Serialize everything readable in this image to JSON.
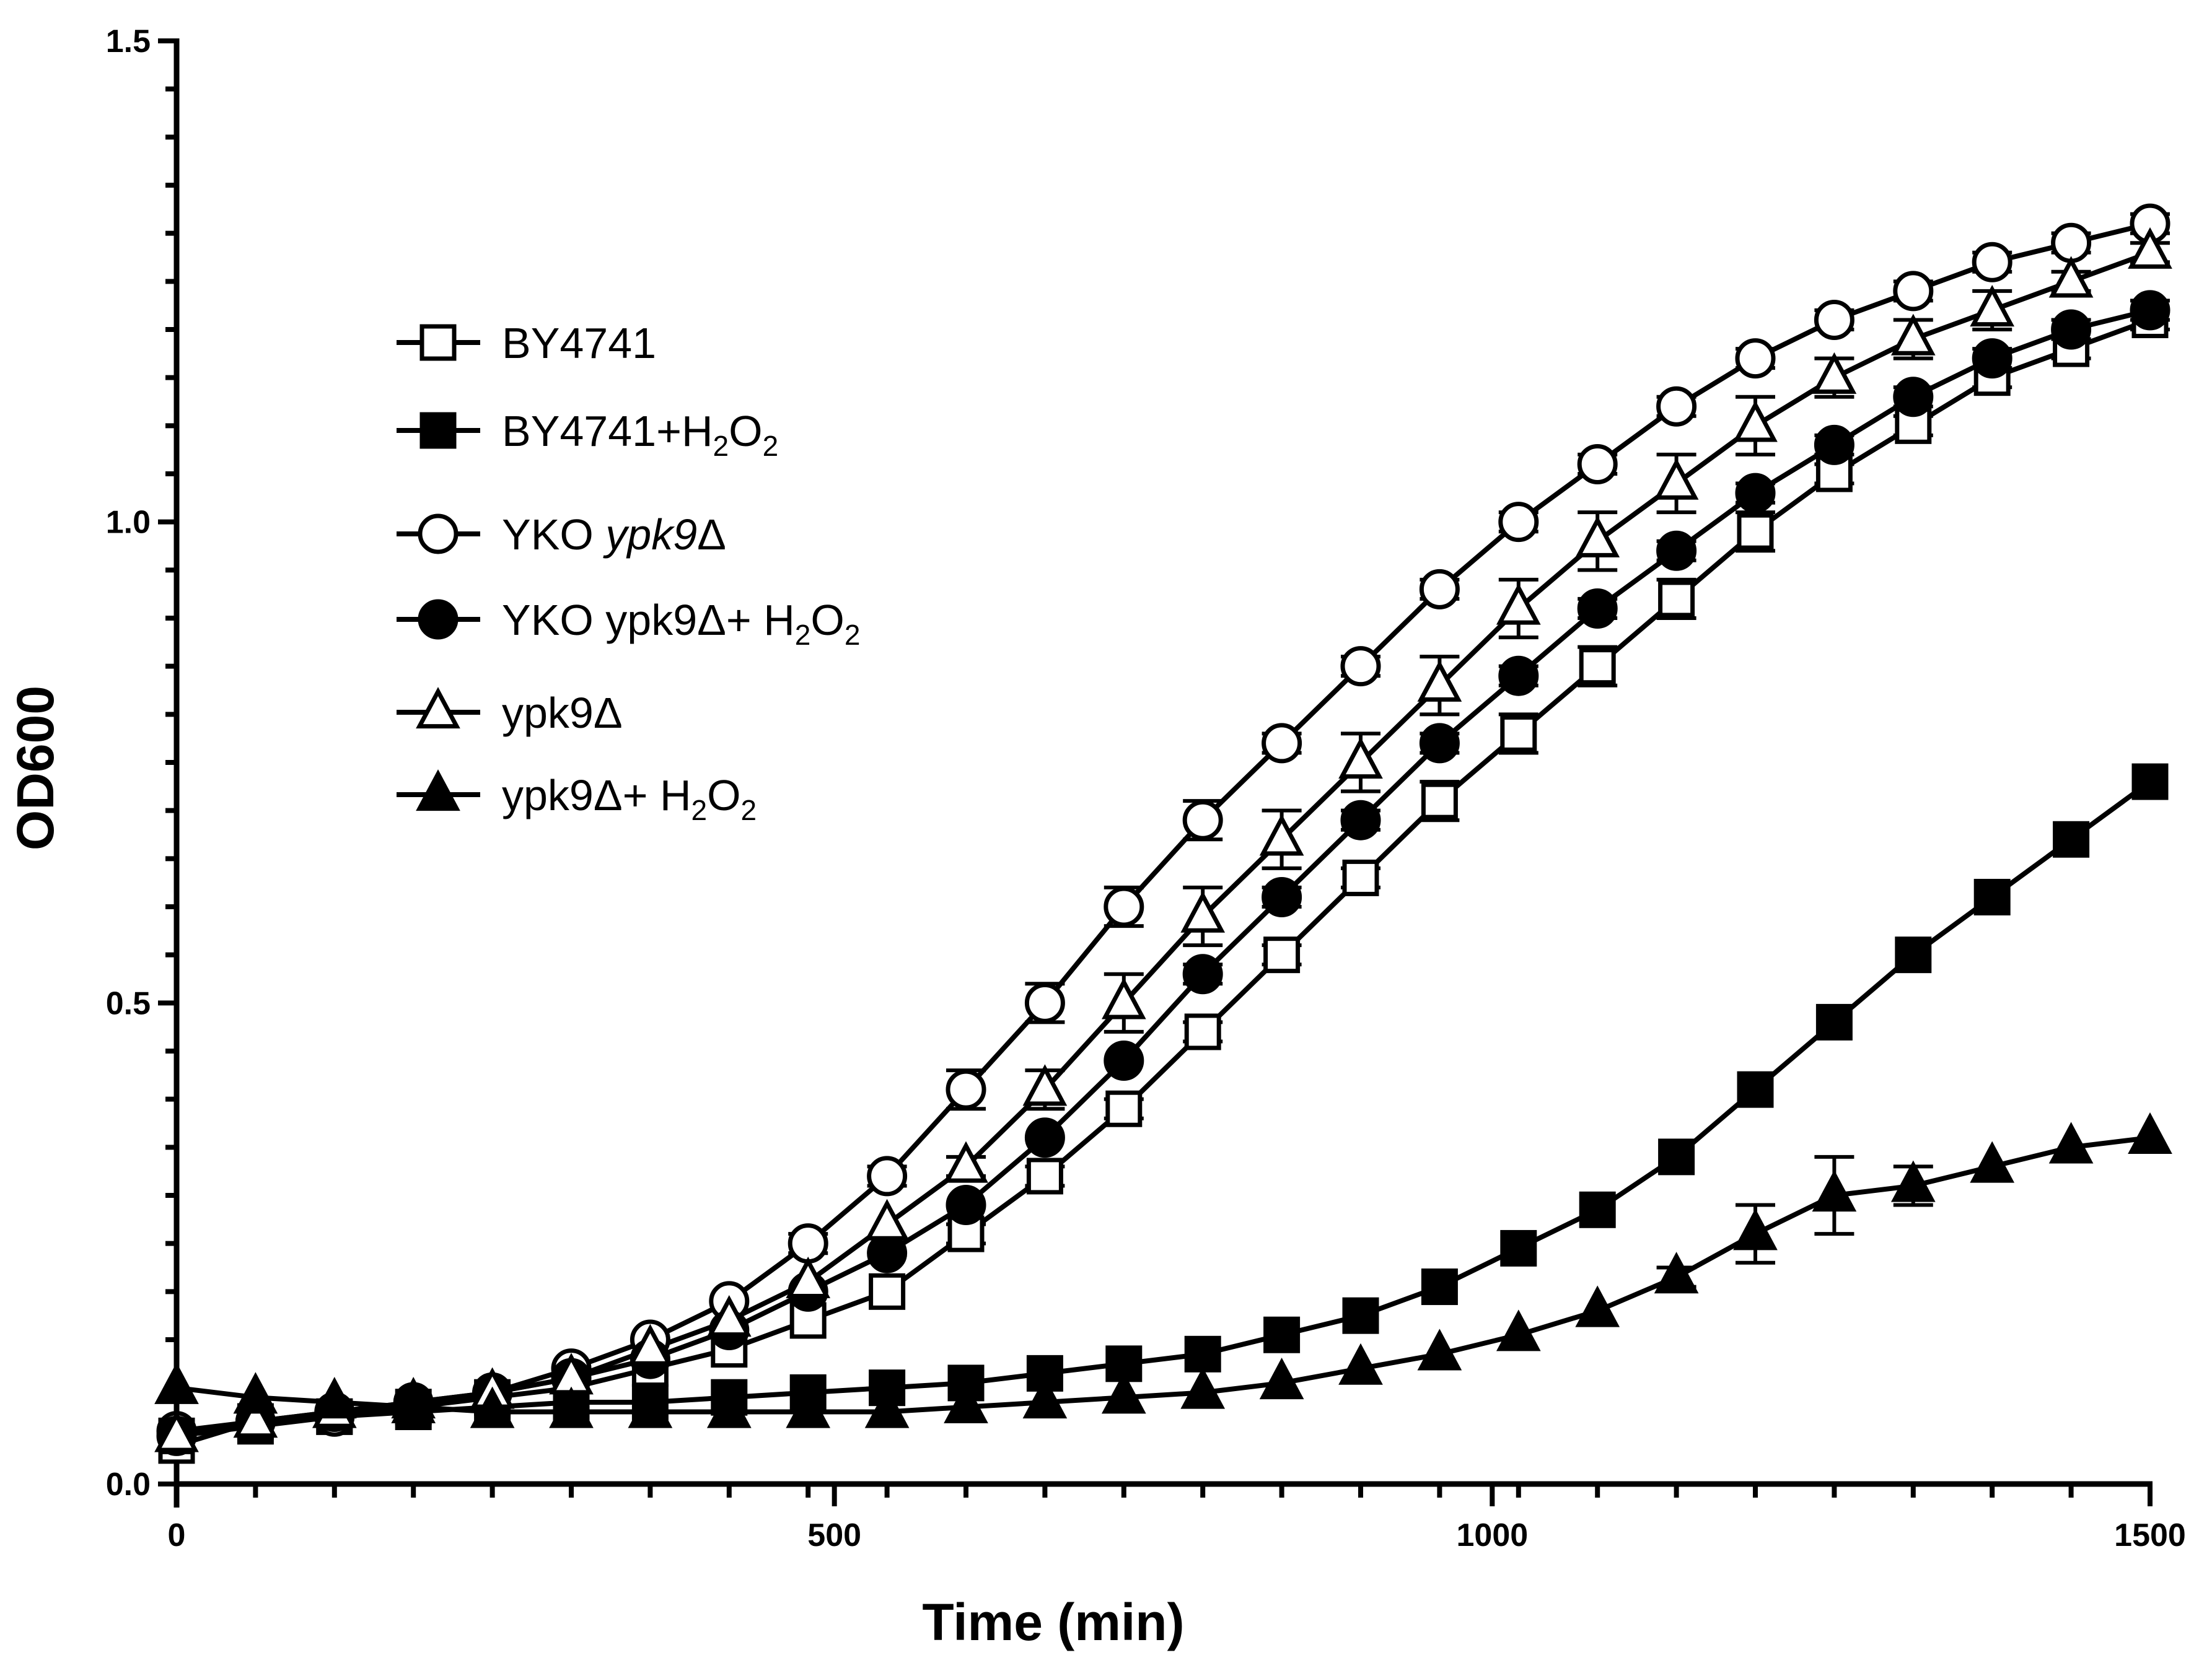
{
  "chart_data": {
    "type": "line",
    "title": "",
    "xlabel": "Time (min)",
    "ylabel": "OD600",
    "xlim": [
      0,
      1500
    ],
    "ylim": [
      0,
      1.5
    ],
    "x_ticks": [
      "0",
      "500",
      "1000",
      "1500"
    ],
    "y_ticks": [
      "0.0",
      "0.5",
      "1.0",
      "1.5"
    ],
    "x_tick_values": [
      0,
      500,
      1000,
      1500
    ],
    "y_tick_values": [
      0,
      0.5,
      1.0,
      1.5
    ],
    "x_minor_step": 60,
    "y_minor_step": 0.05,
    "legend_position": "upper-left",
    "x": [
      0,
      60,
      120,
      180,
      240,
      300,
      360,
      420,
      480,
      540,
      600,
      660,
      720,
      780,
      840,
      900,
      960,
      1020,
      1080,
      1140,
      1200,
      1260,
      1320,
      1380,
      1440,
      1500
    ],
    "series": [
      {
        "name": "BY4741",
        "legend_parts": [
          {
            "t": "BY4741"
          }
        ],
        "marker": "square-open",
        "values": [
          0.04,
          0.065,
          0.07,
          0.08,
          0.09,
          0.1,
          0.12,
          0.14,
          0.17,
          0.2,
          0.26,
          0.32,
          0.39,
          0.47,
          0.55,
          0.63,
          0.71,
          0.78,
          0.85,
          0.92,
          0.99,
          1.05,
          1.1,
          1.15,
          1.18,
          1.21
        ],
        "errors": [
          0,
          0,
          0,
          0,
          0,
          0,
          0,
          0,
          0,
          0,
          0.01,
          0.01,
          0.01,
          0.01,
          0.01,
          0.01,
          0.02,
          0.02,
          0.02,
          0.02,
          0.02,
          0.01,
          0.01,
          0.01,
          0.01,
          0.01
        ]
      },
      {
        "name": "BY4741+H2O2",
        "legend_parts": [
          {
            "t": "BY4741+H"
          },
          {
            "t": "2",
            "sub": true
          },
          {
            "t": "O"
          },
          {
            "t": "2",
            "sub": true
          }
        ],
        "marker": "square-filled",
        "values": [
          0.05,
          0.06,
          0.07,
          0.075,
          0.08,
          0.085,
          0.085,
          0.09,
          0.095,
          0.1,
          0.105,
          0.115,
          0.125,
          0.135,
          0.155,
          0.175,
          0.205,
          0.245,
          0.285,
          0.34,
          0.41,
          0.48,
          0.55,
          0.61,
          0.67,
          0.73
        ],
        "errors": [
          0,
          0,
          0,
          0,
          0,
          0,
          0,
          0,
          0,
          0,
          0,
          0,
          0,
          0,
          0,
          0,
          0,
          0,
          0,
          0,
          0,
          0,
          0,
          0,
          0,
          0
        ]
      },
      {
        "name": "YKO ypk9Δ",
        "legend_parts": [
          {
            "t": "YKO "
          },
          {
            "t": "ypk9",
            "italic": true
          },
          {
            "t": "Δ"
          }
        ],
        "marker": "circle-open",
        "values": [
          0.055,
          0.065,
          0.07,
          0.08,
          0.095,
          0.12,
          0.15,
          0.19,
          0.25,
          0.32,
          0.41,
          0.5,
          0.6,
          0.69,
          0.77,
          0.85,
          0.93,
          1.0,
          1.06,
          1.12,
          1.17,
          1.21,
          1.24,
          1.27,
          1.29,
          1.31
        ],
        "errors": [
          0,
          0,
          0,
          0,
          0,
          0,
          0,
          0,
          0.01,
          0.01,
          0.02,
          0.02,
          0.02,
          0.02,
          0.01,
          0.01,
          0.01,
          0.01,
          0.01,
          0.01,
          0.01,
          0.01,
          0.01,
          0.01,
          0.01,
          0.01
        ]
      },
      {
        "name": "YKO ypk9Δ+ H2O2",
        "legend_parts": [
          {
            "t": "YKO ypk9Δ+ H"
          },
          {
            "t": "2",
            "sub": true
          },
          {
            "t": "O"
          },
          {
            "t": "2",
            "sub": true
          }
        ],
        "marker": "circle-filled",
        "values": [
          0.05,
          0.065,
          0.075,
          0.085,
          0.095,
          0.11,
          0.13,
          0.16,
          0.2,
          0.24,
          0.29,
          0.36,
          0.44,
          0.53,
          0.61,
          0.69,
          0.77,
          0.84,
          0.91,
          0.97,
          1.03,
          1.08,
          1.13,
          1.17,
          1.2,
          1.22
        ],
        "errors": [
          0,
          0,
          0,
          0,
          0,
          0,
          0,
          0,
          0,
          0,
          0,
          0,
          0,
          0.01,
          0.01,
          0.01,
          0.01,
          0.01,
          0.01,
          0.01,
          0.01,
          0.01,
          0.01,
          0.01,
          0.01,
          0.01
        ]
      },
      {
        "name": "ypk9Δ",
        "legend_parts": [
          {
            "t": "ypk9Δ"
          }
        ],
        "marker": "triangle-open",
        "values": [
          0.05,
          0.065,
          0.075,
          0.085,
          0.095,
          0.11,
          0.14,
          0.17,
          0.21,
          0.27,
          0.33,
          0.41,
          0.5,
          0.59,
          0.67,
          0.75,
          0.83,
          0.91,
          0.98,
          1.04,
          1.1,
          1.15,
          1.19,
          1.22,
          1.25,
          1.28
        ],
        "errors": [
          0,
          0,
          0,
          0,
          0,
          0,
          0,
          0,
          0,
          0,
          0.01,
          0.02,
          0.03,
          0.03,
          0.03,
          0.03,
          0.03,
          0.03,
          0.03,
          0.03,
          0.03,
          0.02,
          0.02,
          0.02,
          0.01,
          0.01
        ]
      },
      {
        "name": "ypk9Δ+ H2O2",
        "legend_parts": [
          {
            "t": "ypk9Δ+ H"
          },
          {
            "t": "2",
            "sub": true
          },
          {
            "t": "O"
          },
          {
            "t": "2",
            "sub": true
          }
        ],
        "marker": "triangle-filled",
        "values": [
          0.1,
          0.09,
          0.085,
          0.08,
          0.075,
          0.075,
          0.075,
          0.075,
          0.075,
          0.075,
          0.08,
          0.085,
          0.09,
          0.095,
          0.105,
          0.12,
          0.135,
          0.155,
          0.18,
          0.215,
          0.26,
          0.3,
          0.31,
          0.33,
          0.35,
          0.36
        ],
        "errors": [
          0,
          0,
          0,
          0,
          0,
          0,
          0,
          0,
          0,
          0,
          0,
          0,
          0,
          0,
          0,
          0,
          0,
          0,
          0,
          0.01,
          0.03,
          0.04,
          0.02,
          0,
          0,
          0
        ]
      }
    ]
  }
}
